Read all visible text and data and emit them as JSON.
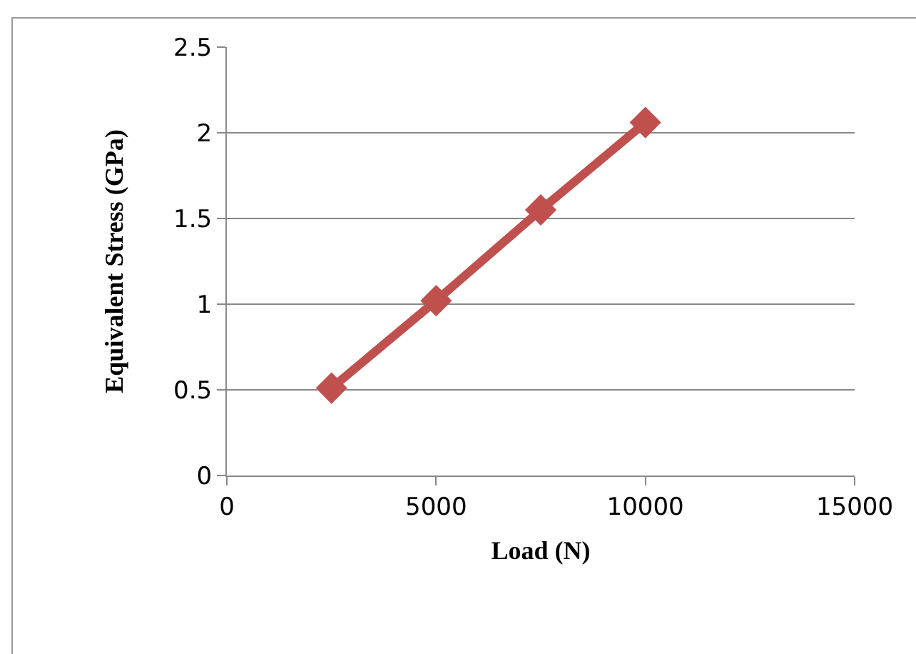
{
  "chart_data": {
    "type": "line",
    "xlabel": "Load (N)",
    "ylabel": "Equivalent Stress (GPa)",
    "x": [
      2500,
      5000,
      7500,
      10000
    ],
    "series": [
      {
        "color": "#c0504d",
        "values": [
          0.51,
          1.02,
          1.55,
          2.06
        ]
      }
    ],
    "xlim": [
      0,
      15000
    ],
    "xticks": [
      0,
      5000,
      10000,
      15000
    ],
    "ylim": [
      0,
      2.5
    ],
    "yticks": [
      0,
      0.5,
      1,
      1.5,
      2,
      2.5
    ],
    "grid": "y",
    "marker": "diamond"
  }
}
